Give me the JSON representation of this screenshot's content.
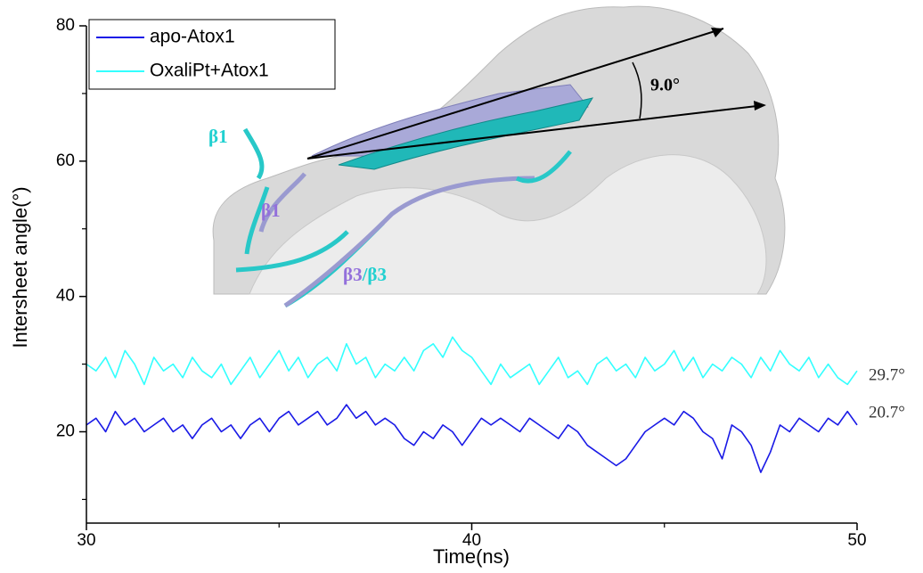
{
  "chart_data": {
    "type": "line",
    "x_label": "Time(ns)",
    "y_label": "Intersheet angle(°)",
    "x": [
      30,
      30.25,
      30.5,
      30.75,
      31,
      31.25,
      31.5,
      31.75,
      32,
      32.25,
      32.5,
      32.75,
      33,
      33.25,
      33.5,
      33.75,
      34,
      34.25,
      34.5,
      34.75,
      35,
      35.25,
      35.5,
      35.75,
      36,
      36.25,
      36.5,
      36.75,
      37,
      37.25,
      37.5,
      37.75,
      38,
      38.25,
      38.5,
      38.75,
      39,
      39.25,
      39.5,
      39.75,
      40,
      40.25,
      40.5,
      40.75,
      41,
      41.25,
      41.5,
      41.75,
      42,
      42.25,
      42.5,
      42.75,
      43,
      43.25,
      43.5,
      43.75,
      44,
      44.25,
      44.5,
      44.75,
      45,
      45.25,
      45.5,
      45.75,
      46,
      46.25,
      46.5,
      46.75,
      47,
      47.25,
      47.5,
      47.75,
      48,
      48.25,
      48.5,
      48.75,
      49,
      49.25,
      49.5,
      49.75,
      50
    ],
    "series": [
      {
        "name": "apo-Atox1",
        "color": "#1a1ae6",
        "values": [
          21,
          22,
          20,
          23,
          21,
          22,
          20,
          21,
          22,
          20,
          21,
          19,
          21,
          22,
          20,
          21,
          19,
          21,
          22,
          20,
          22,
          23,
          21,
          22,
          23,
          21,
          22,
          24,
          22,
          23,
          21,
          22,
          21,
          19,
          18,
          20,
          19,
          21,
          20,
          18,
          20,
          22,
          21,
          22,
          21,
          20,
          22,
          21,
          20,
          19,
          21,
          20,
          18,
          17,
          16,
          15,
          16,
          18,
          20,
          21,
          22,
          21,
          23,
          22,
          20,
          19,
          16,
          21,
          20,
          18,
          14,
          17,
          21,
          20,
          22,
          21,
          20,
          22,
          21,
          23,
          21
        ]
      },
      {
        "name": "OxaliPt+Atox1",
        "color": "#33ffff",
        "values": [
          30,
          29,
          31,
          28,
          32,
          30,
          27,
          31,
          29,
          30,
          28,
          31,
          29,
          28,
          30,
          27,
          29,
          31,
          28,
          30,
          32,
          29,
          31,
          28,
          30,
          31,
          29,
          33,
          30,
          31,
          28,
          30,
          29,
          31,
          29,
          32,
          33,
          31,
          34,
          32,
          31,
          29,
          27,
          30,
          28,
          29,
          30,
          27,
          29,
          31,
          28,
          29,
          27,
          30,
          31,
          29,
          30,
          28,
          31,
          29,
          30,
          32,
          29,
          31,
          28,
          30,
          29,
          31,
          30,
          28,
          31,
          29,
          32,
          30,
          29,
          31,
          28,
          30,
          28,
          27,
          29
        ]
      }
    ],
    "xlim": [
      30,
      50
    ],
    "xticks": [
      30,
      40,
      50
    ],
    "x_minor_ticks": [
      35,
      45
    ],
    "ylim": [
      6.5,
      80
    ],
    "yticks": [
      20,
      40,
      60,
      80
    ],
    "y_minor_ticks": [
      10,
      30,
      50,
      70
    ],
    "legend": "upper left",
    "end_labels": [
      "29.7°",
      "20.7°"
    ],
    "inset_labels": {
      "beta1_cyan": "β1",
      "beta1_purple": "β1",
      "beta3_purple": "β3",
      "beta3_cyan": "/β3",
      "angle": "9.0°"
    }
  }
}
